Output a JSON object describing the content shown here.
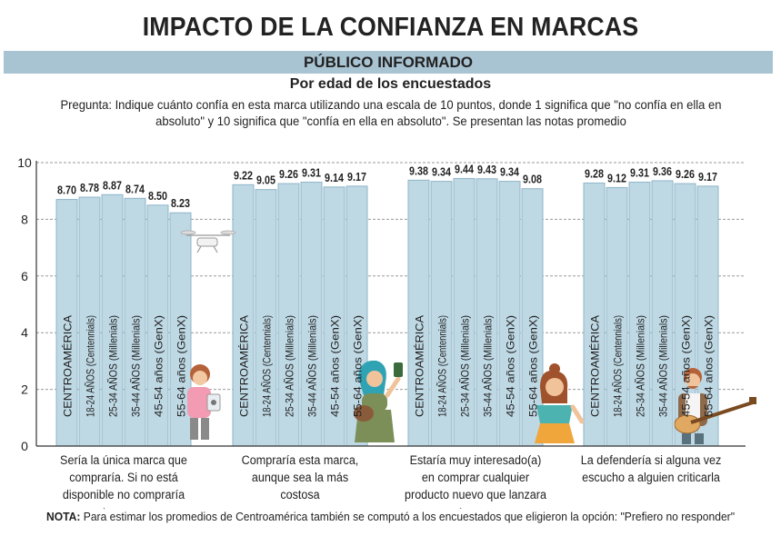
{
  "header": {
    "title": "IMPACTO DE LA CONFIANZA EN MARCAS",
    "band": "PÚBLICO INFORMADO",
    "subtitle": "Por edad de los encuestados",
    "question": "Pregunta: Indique cuánto confía en esta marca utilizando una escala de 10 puntos, donde 1 significa que \"no confía en ella en absoluto\" y 10 significa que \"confía en ella en absoluto\". Se presentan las notas promedio"
  },
  "note": {
    "label": "NOTA:",
    "text": " Para estimar los promedios de Centroamérica también se computó a los encuestados que eligieron la opción: \"Prefiero no responder\""
  },
  "colors": {
    "bar_fill": "#bed8e4",
    "bar_stroke": "#8fb6c9",
    "band": "#a8c3d2",
    "text": "#222222"
  },
  "chart_data": {
    "type": "bar",
    "ylim": [
      0,
      10
    ],
    "yticks": [
      0,
      2,
      4,
      6,
      8,
      10
    ],
    "grid": true,
    "categories": [
      "CENTROAMÉRICA",
      "18-24 AÑOS (Centennials)",
      "25-34 AÑOS (Millenials)",
      "35-44 AÑOS (Millenials)",
      "45-54 años (GenX)",
      "55-64 años (GenX)"
    ],
    "groups": [
      {
        "label": "Sería la única marca que compraría. Si no está disponible no compraría otra marca",
        "values": [
          8.7,
          8.78,
          8.87,
          8.74,
          8.5,
          8.23
        ],
        "value_labels": [
          "8.70",
          "8.78",
          "8.87",
          "8.74",
          "8.50",
          "8.23"
        ]
      },
      {
        "label": "Compraría esta marca, aunque sea la más costosa",
        "values": [
          9.22,
          9.05,
          9.26,
          9.31,
          9.14,
          9.17
        ],
        "value_labels": [
          "9.22",
          "9.05",
          "9.26",
          "9.31",
          "9.14",
          "9.17"
        ]
      },
      {
        "label": "Estaría muy interesado(a) en comprar cualquier producto nuevo que lanzara esta marca",
        "values": [
          9.38,
          9.34,
          9.44,
          9.43,
          9.34,
          9.08
        ],
        "value_labels": [
          "9.38",
          "9.34",
          "9.44",
          "9.43",
          "9.34",
          "9.08"
        ]
      },
      {
        "label": "La defendería si alguna vez escucho a alguien criticarla",
        "values": [
          9.28,
          9.12,
          9.31,
          9.36,
          9.26,
          9.17
        ],
        "value_labels": [
          "9.28",
          "9.12",
          "9.31",
          "9.36",
          "9.26",
          "9.17"
        ]
      }
    ]
  },
  "illustrations": [
    "drone-icon",
    "girl-with-phone-icon",
    "woman-with-phone-icon",
    "woman-illustration-icon",
    "man-with-guitar-icon"
  ]
}
